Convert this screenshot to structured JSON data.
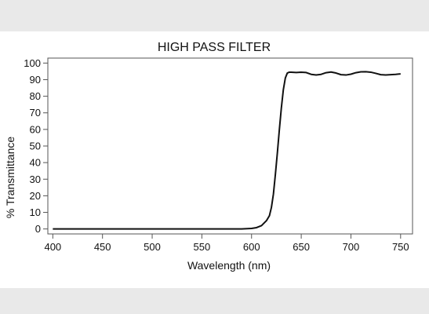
{
  "chart_data": {
    "type": "line",
    "title": "HIGH PASS FILTER",
    "xlabel": "Wavelength (nm)",
    "ylabel": "% Transmittance",
    "xlim": [
      395,
      762
    ],
    "ylim": [
      -3,
      103
    ],
    "x_ticks": [
      400,
      450,
      500,
      550,
      600,
      650,
      700,
      750
    ],
    "x_tick_labels": [
      "400",
      "450",
      "500",
      "550",
      "600",
      "650",
      "700",
      "750"
    ],
    "y_ticks": [
      0,
      10,
      20,
      30,
      40,
      50,
      60,
      70,
      80,
      90,
      100
    ],
    "y_tick_labels": [
      "0",
      "10",
      "20",
      "30",
      "40",
      "50",
      "60",
      "70",
      "80",
      "90",
      "100"
    ],
    "grid": false,
    "legend": "none",
    "colors": {
      "line": "#111111",
      "axes": "#555555",
      "background": "#ffffff",
      "margin": "#e9e9e9"
    },
    "series": [
      {
        "x": [
          400,
          450,
          500,
          550,
          590,
          600,
          605,
          610,
          615,
          618,
          620,
          622,
          624,
          626,
          628,
          630,
          632,
          634,
          636,
          638,
          640,
          645,
          650,
          655,
          660,
          665,
          670,
          675,
          680,
          685,
          690,
          695,
          700,
          705,
          710,
          715,
          720,
          725,
          730,
          735,
          740,
          745,
          750
        ],
        "y": [
          0,
          0,
          0,
          0,
          0,
          0.3,
          0.8,
          2,
          5,
          8,
          13,
          21,
          33,
          46,
          60,
          73,
          84,
          91,
          94,
          94.5,
          94.5,
          94.3,
          94.5,
          94.3,
          93.2,
          92.8,
          93.2,
          94.2,
          94.6,
          94.0,
          93.0,
          92.8,
          93.3,
          94.2,
          94.7,
          94.8,
          94.5,
          93.8,
          93.0,
          92.8,
          93.0,
          93.2,
          93.5
        ]
      }
    ]
  }
}
